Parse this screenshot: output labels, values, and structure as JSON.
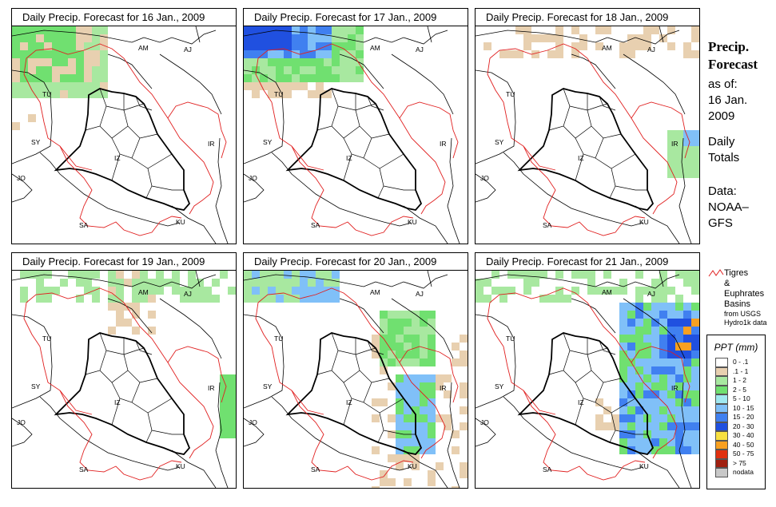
{
  "panels": [
    {
      "title": "Daily Precip. Forecast for  16 Jan., 2009",
      "level": 0
    },
    {
      "title": "Daily Precip. Forecast for  17 Jan., 2009",
      "level": 1
    },
    {
      "title": "Daily Precip. Forecast for  18 Jan., 2009",
      "level": 2
    },
    {
      "title": "Daily Precip. Forecast for  19 Jan., 2009",
      "level": 3
    },
    {
      "title": "Daily Precip. Forecast for  20 Jan., 2009",
      "level": 4
    },
    {
      "title": "Daily Precip. Forecast for  21 Jan., 2009",
      "level": 5
    }
  ],
  "map_labels": {
    "am": "AM",
    "aj": "AJ",
    "tu": "TU",
    "sy": "SY",
    "ir": "IR",
    "iz": "IZ",
    "jo": "JO",
    "sa": "SA",
    "ku": "KU"
  },
  "sidebar": {
    "title_line1": "Precip.",
    "title_line2": "Forecast",
    "asof_1": "as of:",
    "asof_2": "16 Jan.",
    "asof_3": "2009",
    "totals_1": "Daily",
    "totals_2": "Totals",
    "data_1": "Data:",
    "data_2": "NOAA–",
    "data_3": "GFS"
  },
  "basin_key": {
    "line1": "Tigres",
    "line2": "& Euphrates",
    "line3": "Basins",
    "src1": "from USGS",
    "src2": "Hydro1k data",
    "color": "#e02020"
  },
  "legend": {
    "title": "PPT (mm)",
    "items": [
      {
        "label": "0 - .1",
        "color": "#ffffff"
      },
      {
        "label": ".1 - 1",
        "color": "#e8d0b0"
      },
      {
        "label": "1 - 2",
        "color": "#a8e8a0"
      },
      {
        "label": "2 - 5",
        "color": "#70e070"
      },
      {
        "label": "5 - 10",
        "color": "#a0e8f0"
      },
      {
        "label": "10 - 15",
        "color": "#80c0f8"
      },
      {
        "label": "15 - 20",
        "color": "#4080f0"
      },
      {
        "label": "20 - 30",
        "color": "#2050e0"
      },
      {
        "label": "30 - 40",
        "color": "#f8e040"
      },
      {
        "label": "40 - 50",
        "color": "#f8a020"
      },
      {
        "label": "50 - 75",
        "color": "#e03010"
      },
      {
        "label": "> 75",
        "color": "#a02010"
      },
      {
        "label": "nodata",
        "color": "#c8c8c8"
      }
    ]
  }
}
